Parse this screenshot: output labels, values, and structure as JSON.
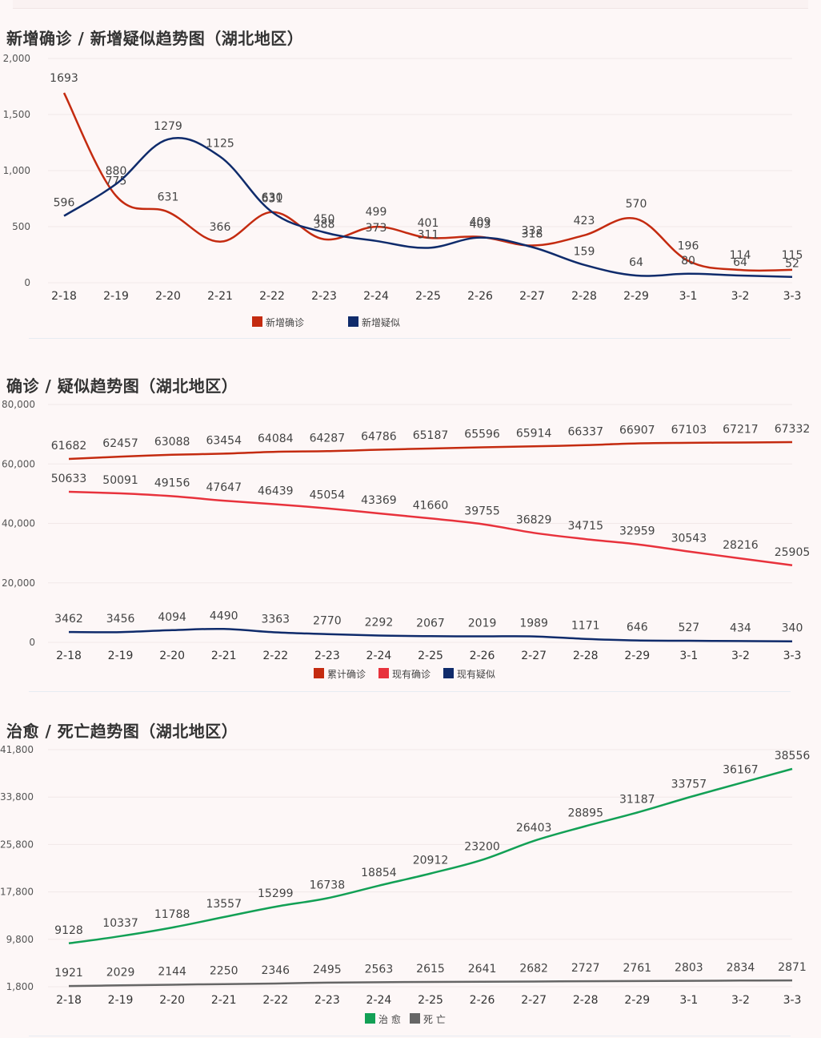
{
  "page": {
    "background": "#fdf7f7"
  },
  "chart_data": [
    {
      "type": "line",
      "title": "新增确诊 / 新增疑似趋势图（湖北地区）",
      "xlabel": "",
      "ylabel": "",
      "categories": [
        "2-18",
        "2-19",
        "2-20",
        "2-21",
        "2-22",
        "2-23",
        "2-24",
        "2-25",
        "2-26",
        "2-27",
        "2-28",
        "2-29",
        "3-1",
        "3-2",
        "3-3"
      ],
      "ylim": [
        0,
        2000
      ],
      "yticks": [
        0,
        500,
        1000,
        1500,
        2000
      ],
      "ytick_labels": [
        "0",
        "500",
        "1,000",
        "1,500",
        "2,000"
      ],
      "grid": true,
      "legend_position": "bottom-center",
      "series": [
        {
          "name": "新增确诊",
          "color": "#c42b10",
          "values": [
            1693,
            775,
            631,
            366,
            630,
            388,
            499,
            401,
            409,
            332,
            423,
            570,
            196,
            114,
            115
          ]
        },
        {
          "name": "新增疑似",
          "color": "#0f2b6b",
          "values": [
            596,
            880,
            1279,
            1125,
            631,
            450,
            373,
            311,
            403,
            318,
            159,
            64,
            80,
            64,
            52
          ]
        }
      ]
    },
    {
      "type": "line",
      "title": "确诊 / 疑似趋势图（湖北地区）",
      "xlabel": "",
      "ylabel": "",
      "categories": [
        "2-18",
        "2-19",
        "2-20",
        "2-21",
        "2-22",
        "2-23",
        "2-24",
        "2-25",
        "2-26",
        "2-27",
        "2-28",
        "2-29",
        "3-1",
        "3-2",
        "3-3"
      ],
      "ylim": [
        0,
        80000
      ],
      "yticks": [
        0,
        20000,
        40000,
        60000,
        80000
      ],
      "ytick_labels": [
        "0",
        "20,000",
        "40,000",
        "60,000",
        "80,000"
      ],
      "grid": true,
      "legend_position": "bottom-center",
      "series": [
        {
          "name": "累计确诊",
          "color": "#c42b10",
          "values": [
            61682,
            62457,
            63088,
            63454,
            64084,
            64287,
            64786,
            65187,
            65596,
            65914,
            66337,
            66907,
            67103,
            67217,
            67332
          ]
        },
        {
          "name": "现有确诊",
          "color": "#e8323c",
          "values": [
            50633,
            50091,
            49156,
            47647,
            46439,
            45054,
            43369,
            41660,
            39755,
            36829,
            34715,
            32959,
            30543,
            28216,
            25905
          ]
        },
        {
          "name": "现有疑似",
          "color": "#0f2b6b",
          "values": [
            3462,
            3456,
            4094,
            4490,
            3363,
            2770,
            2292,
            2067,
            2019,
            1989,
            1171,
            646,
            527,
            434,
            340
          ]
        }
      ]
    },
    {
      "type": "line",
      "title": "治愈 / 死亡趋势图（湖北地区）",
      "xlabel": "",
      "ylabel": "",
      "categories": [
        "2-18",
        "2-19",
        "2-20",
        "2-21",
        "2-22",
        "2-23",
        "2-24",
        "2-25",
        "2-26",
        "2-27",
        "2-28",
        "2-29",
        "3-1",
        "3-2",
        "3-3"
      ],
      "ylim": [
        1800,
        41800
      ],
      "yticks": [
        1800,
        9800,
        17800,
        25800,
        33800,
        41800
      ],
      "ytick_labels": [
        "1,800",
        "9,800",
        "17,800",
        "25,800",
        "33,800",
        "41,800"
      ],
      "grid": true,
      "legend_position": "bottom-center",
      "series": [
        {
          "name": "治愈",
          "legend_label": "治 愈",
          "color": "#12a055",
          "values": [
            9128,
            10337,
            11788,
            13557,
            15299,
            16738,
            18854,
            20912,
            23200,
            26403,
            28895,
            31187,
            33757,
            36167,
            38556
          ]
        },
        {
          "name": "死亡",
          "legend_label": "死 亡",
          "color": "#666666",
          "values": [
            1921,
            2029,
            2144,
            2250,
            2346,
            2495,
            2563,
            2615,
            2641,
            2682,
            2727,
            2761,
            2803,
            2834,
            2871
          ]
        }
      ]
    }
  ]
}
